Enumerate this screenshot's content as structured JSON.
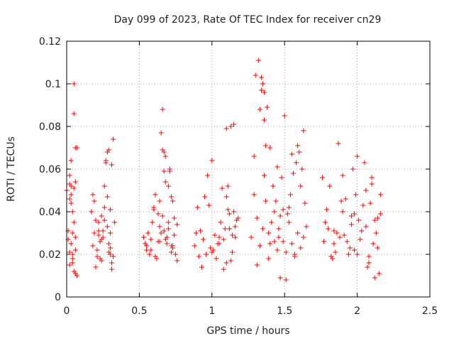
{
  "chart_data": {
    "type": "scatter",
    "title": "Day 099 of 2023, Rate Of TEC Index for receiver cn29",
    "xlabel": "GPS time / hours",
    "ylabel": "ROTI / TECUs",
    "xlim": [
      0,
      2.5
    ],
    "ylim": [
      0,
      0.12
    ],
    "xticks": [
      0,
      0.5,
      1,
      1.5,
      2,
      2.5
    ],
    "xtick_labels": [
      "0",
      "0.5",
      "1",
      "1.5",
      "2",
      "2.5"
    ],
    "yticks": [
      0,
      0.02,
      0.04,
      0.06,
      0.08,
      0.1,
      0.12
    ],
    "ytick_labels": [
      "0",
      "0.02",
      "0.04",
      "0.06",
      "0.08",
      "0.1",
      "0.12"
    ],
    "grid": true,
    "marker": "+",
    "color": "#ff0000",
    "series": [
      {
        "name": "ROTI",
        "x": [
          0.0,
          0.01,
          0.02,
          0.02,
          0.03,
          0.03,
          0.04,
          0.04,
          0.05,
          0.05,
          0.06,
          0.06,
          0.07,
          0.03,
          0.05,
          0.04,
          0.02,
          0.06,
          0.07,
          0.04,
          0.05,
          0.01,
          0.02,
          0.03,
          0.06,
          0.04,
          0.03,
          0.05,
          0.02,
          0.06,
          0.17,
          0.18,
          0.19,
          0.2,
          0.21,
          0.22,
          0.23,
          0.24,
          0.25,
          0.26,
          0.27,
          0.28,
          0.29,
          0.3,
          0.31,
          0.32,
          0.2,
          0.22,
          0.24,
          0.26,
          0.28,
          0.3,
          0.19,
          0.21,
          0.23,
          0.25,
          0.27,
          0.29,
          0.31,
          0.33,
          0.28,
          0.29,
          0.3,
          0.31,
          0.32,
          0.18,
          0.22,
          0.26,
          0.3,
          0.24,
          0.53,
          0.54,
          0.55,
          0.56,
          0.57,
          0.58,
          0.59,
          0.6,
          0.61,
          0.62,
          0.63,
          0.64,
          0.65,
          0.66,
          0.67,
          0.68,
          0.69,
          0.7,
          0.71,
          0.72,
          0.73,
          0.74,
          0.75,
          0.76,
          0.64,
          0.65,
          0.66,
          0.67,
          0.68,
          0.69,
          0.7,
          0.71,
          0.72,
          0.73,
          0.74,
          0.66,
          0.55,
          0.58,
          0.61,
          0.64,
          0.67,
          0.7,
          0.73,
          0.76,
          0.6,
          0.63,
          0.68,
          0.72,
          0.88,
          0.9,
          0.92,
          0.94,
          0.96,
          0.98,
          1.0,
          1.02,
          1.04,
          1.06,
          1.08,
          1.1,
          1.12,
          1.14,
          1.16,
          1.18,
          0.91,
          0.95,
          0.99,
          1.03,
          1.07,
          1.11,
          1.15,
          1.0,
          1.05,
          1.1,
          1.13,
          1.15,
          1.17,
          1.11,
          1.12,
          1.14,
          1.16,
          1.08,
          1.1,
          0.97,
          1.09,
          1.13,
          1.05,
          1.01,
          0.93,
          0.89,
          1.27,
          1.29,
          1.31,
          1.33,
          1.35,
          1.37,
          1.39,
          1.41,
          1.43,
          1.45,
          1.47,
          1.49,
          1.51,
          1.53,
          1.55,
          1.57,
          1.59,
          1.61,
          1.63,
          1.65,
          1.3,
          1.32,
          1.34,
          1.36,
          1.38,
          1.33,
          1.34,
          1.35,
          1.36,
          1.37,
          1.29,
          1.31,
          1.4,
          1.42,
          1.44,
          1.46,
          1.48,
          1.5,
          1.52,
          1.54,
          1.56,
          1.58,
          1.6,
          1.62,
          1.64,
          1.39,
          1.47,
          1.53,
          1.57,
          1.61,
          1.43,
          1.49,
          1.55,
          1.59,
          1.63,
          1.45,
          1.51,
          1.36,
          1.4,
          1.46,
          1.76,
          1.78,
          1.8,
          1.82,
          1.84,
          1.86,
          1.88,
          1.9,
          1.92,
          1.94,
          1.96,
          1.98,
          2.0,
          2.02,
          2.04,
          2.06,
          2.08,
          2.1,
          2.12,
          2.14,
          2.16,
          1.79,
          1.83,
          1.87,
          1.91,
          1.95,
          1.99,
          2.03,
          2.07,
          2.11,
          2.15,
          1.81,
          1.85,
          1.89,
          1.93,
          1.97,
          2.01,
          2.05,
          2.09,
          2.13,
          1.77,
          1.98,
          2.0,
          2.1,
          2.12,
          2.14,
          1.84,
          1.9,
          2.06,
          2.16,
          1.96,
          2.08
        ]
      }
    ],
    "series_y": [
      0.05,
      0.027,
      0.015,
      0.053,
      0.025,
      0.052,
      0.018,
      0.02,
      0.1,
      0.086,
      0.07,
      0.054,
      0.01,
      0.064,
      0.012,
      0.03,
      0.046,
      0.022,
      0.07,
      0.04,
      0.035,
      0.031,
      0.057,
      0.048,
      0.028,
      0.016,
      0.044,
      0.051,
      0.021,
      0.011,
      0.04,
      0.048,
      0.03,
      0.036,
      0.022,
      0.035,
      0.018,
      0.027,
      0.031,
      0.042,
      0.063,
      0.068,
      0.025,
      0.02,
      0.016,
      0.074,
      0.014,
      0.029,
      0.038,
      0.052,
      0.033,
      0.023,
      0.045,
      0.019,
      0.026,
      0.028,
      0.064,
      0.069,
      0.062,
      0.035,
      0.047,
      0.021,
      0.03,
      0.013,
      0.019,
      0.024,
      0.031,
      0.036,
      0.041,
      0.017,
      0.028,
      0.025,
      0.022,
      0.03,
      0.02,
      0.027,
      0.035,
      0.041,
      0.048,
      0.018,
      0.026,
      0.045,
      0.077,
      0.069,
      0.059,
      0.066,
      0.025,
      0.032,
      0.06,
      0.047,
      0.024,
      0.037,
      0.02,
      0.034,
      0.033,
      0.03,
      0.088,
      0.068,
      0.054,
      0.028,
      0.052,
      0.059,
      0.021,
      0.045,
      0.029,
      0.038,
      0.024,
      0.022,
      0.019,
      0.026,
      0.031,
      0.035,
      0.023,
      0.017,
      0.042,
      0.039,
      0.027,
      0.024,
      0.024,
      0.042,
      0.031,
      0.027,
      0.02,
      0.043,
      0.021,
      0.029,
      0.025,
      0.035,
      0.027,
      0.016,
      0.032,
      0.029,
      0.033,
      0.037,
      0.019,
      0.047,
      0.023,
      0.018,
      0.051,
      0.052,
      0.04,
      0.064,
      0.028,
      0.079,
      0.08,
      0.081,
      0.036,
      0.041,
      0.039,
      0.021,
      0.028,
      0.013,
      0.047,
      0.057,
      0.032,
      0.017,
      0.025,
      0.022,
      0.014,
      0.03,
      0.028,
      0.048,
      0.037,
      0.024,
      0.032,
      0.045,
      0.03,
      0.035,
      0.04,
      0.022,
      0.038,
      0.026,
      0.021,
      0.042,
      0.025,
      0.02,
      0.03,
      0.052,
      0.028,
      0.033,
      0.104,
      0.111,
      0.097,
      0.083,
      0.089,
      0.088,
      0.103,
      0.1,
      0.096,
      0.071,
      0.066,
      0.015,
      0.07,
      0.052,
      0.045,
      0.028,
      0.056,
      0.085,
      0.039,
      0.048,
      0.058,
      0.063,
      0.068,
      0.06,
      0.044,
      0.018,
      0.009,
      0.035,
      0.019,
      0.023,
      0.026,
      0.041,
      0.067,
      0.071,
      0.078,
      0.061,
      0.008,
      0.057,
      0.025,
      0.032,
      0.056,
      0.035,
      0.032,
      0.019,
      0.025,
      0.03,
      0.028,
      0.04,
      0.046,
      0.02,
      0.034,
      0.022,
      0.066,
      0.027,
      0.043,
      0.05,
      0.016,
      0.053,
      0.009,
      0.037,
      0.039,
      0.041,
      0.018,
      0.072,
      0.029,
      0.023,
      0.048,
      0.031,
      0.014,
      0.025,
      0.011,
      0.052,
      0.021,
      0.045,
      0.026,
      0.06,
      0.036,
      0.063,
      0.044,
      0.03,
      0.026,
      0.039,
      0.02,
      0.056,
      0.036,
      0.023,
      0.031,
      0.057,
      0.033,
      0.048,
      0.038,
      0.019
    ]
  }
}
